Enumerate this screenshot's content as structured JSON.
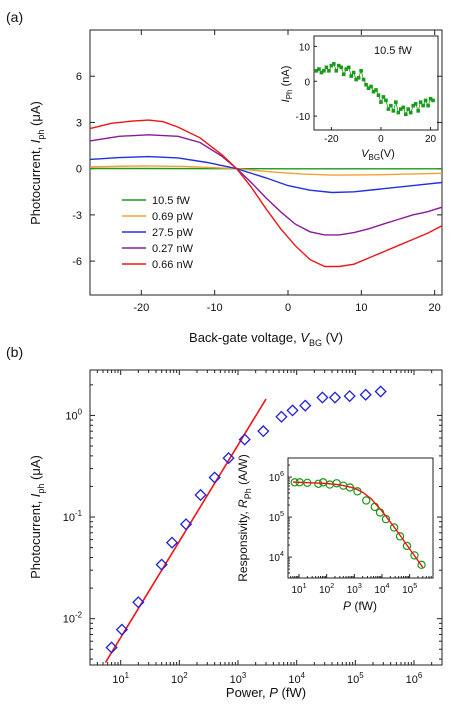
{
  "panels": [
    {
      "label": "(a)"
    },
    {
      "label": "(b)"
    }
  ],
  "chart_data": [
    {
      "panel": "(a)",
      "type": "line",
      "xlabel": "Back-gate voltage, ",
      "xlabel_var": "V",
      "xlabel_sub": "BG",
      "xlabel_unit": " (V)",
      "ylabel": "Photocurrent, ",
      "ylabel_var": "I",
      "ylabel_sub": "ph",
      "ylabel_unit": " (μA)",
      "xlim": [
        -27,
        21
      ],
      "ylim": [
        -8.2,
        9
      ],
      "xticks": [
        -20,
        -10,
        0,
        10,
        20
      ],
      "yticks": [
        -6,
        -3,
        0,
        3,
        6
      ],
      "grid": false,
      "legend_position": "lower-left",
      "series": [
        {
          "name": "10.5 fW",
          "color": "#1a9a1a",
          "x": [
            -27,
            -20,
            -7,
            0,
            6,
            21
          ],
          "y": [
            0.01,
            0.01,
            0,
            -0.01,
            -0.01,
            -0.01
          ]
        },
        {
          "name": "0.69 pW",
          "color": "#f5a030",
          "x": [
            -27,
            -20,
            -14,
            -7,
            -2,
            2,
            6,
            12,
            21
          ],
          "y": [
            0.12,
            0.18,
            0.15,
            0,
            -0.22,
            -0.35,
            -0.42,
            -0.4,
            -0.3
          ]
        },
        {
          "name": "27.5 pW",
          "color": "#2230e0",
          "x": [
            -27,
            -23,
            -19,
            -15,
            -11,
            -7,
            -3,
            0,
            3,
            6,
            9,
            12,
            15,
            18,
            21
          ],
          "y": [
            0.6,
            0.72,
            0.78,
            0.7,
            0.4,
            0,
            -0.6,
            -1.1,
            -1.4,
            -1.55,
            -1.5,
            -1.35,
            -1.2,
            -1.05,
            -0.9
          ]
        },
        {
          "name": "0.27 nW",
          "color": "#8a1a9a",
          "x": [
            -27,
            -23,
            -19,
            -15,
            -12,
            -9,
            -7,
            -5,
            -3,
            -1,
            1,
            3,
            5,
            7,
            9,
            11,
            13,
            15,
            17,
            19,
            21
          ],
          "y": [
            1.8,
            2.1,
            2.2,
            2.1,
            1.7,
            0.8,
            0.0,
            -0.9,
            -1.9,
            -2.8,
            -3.6,
            -4.1,
            -4.3,
            -4.3,
            -4.15,
            -3.9,
            -3.6,
            -3.3,
            -3.0,
            -2.8,
            -2.5
          ]
        },
        {
          "name": "0.66 nW",
          "color": "#ee1515",
          "x": [
            -27,
            -24,
            -21,
            -19,
            -17,
            -15,
            -12,
            -9,
            -7,
            -5,
            -3,
            -1,
            1,
            3,
            5,
            7,
            9,
            11,
            13,
            15,
            17,
            19,
            21
          ],
          "y": [
            2.6,
            2.95,
            3.1,
            3.15,
            3.05,
            2.7,
            2.0,
            0.9,
            0.0,
            -1.2,
            -2.6,
            -3.9,
            -5.0,
            -5.9,
            -6.35,
            -6.35,
            -6.2,
            -5.8,
            -5.4,
            -5.0,
            -4.6,
            -4.2,
            -3.7
          ]
        }
      ],
      "inset": {
        "type": "scatter",
        "annotation": "10.5 fW",
        "xlabel_var": "V",
        "xlabel_sub": "BG",
        "xlabel_unit": "(V)",
        "ylabel_var": "I",
        "ylabel_sub": "Ph",
        "ylabel_unit": " (nA)",
        "xlim": [
          -27,
          23
        ],
        "ylim": [
          -14,
          13
        ],
        "xticks": [
          -20,
          0,
          20
        ],
        "yticks": [
          -10,
          0,
          10
        ],
        "color": "#1a9a1a",
        "x": [
          -26,
          -25,
          -24,
          -23,
          -22,
          -21,
          -20,
          -19,
          -18,
          -17,
          -16,
          -15,
          -14,
          -13,
          -12,
          -11,
          -10,
          -9,
          -8,
          -7,
          -6,
          -5,
          -4,
          -3,
          -2,
          -1,
          0,
          1,
          2,
          3,
          4,
          5,
          6,
          7,
          8,
          9,
          10,
          11,
          12,
          13,
          14,
          15,
          16,
          17,
          18,
          19,
          20,
          21
        ],
        "y": [
          3,
          3.5,
          2.5,
          3,
          4,
          3,
          4.5,
          5,
          3,
          4.5,
          4,
          2,
          3.5,
          4,
          1.5,
          2.5,
          0.5,
          1,
          3,
          0.5,
          -1,
          -2,
          -1.5,
          -3,
          -2.5,
          -4,
          -6,
          -4.5,
          -5.5,
          -8,
          -7,
          -8.5,
          -6,
          -9,
          -8,
          -7.5,
          -9.5,
          -8,
          -9,
          -7,
          -6.5,
          -8.5,
          -6,
          -7,
          -5.5,
          -7,
          -5,
          -5.5
        ]
      }
    },
    {
      "panel": "(b)",
      "type": "scatter",
      "xscale": "log",
      "yscale": "log",
      "xlabel": "Power, ",
      "xlabel_var": "P",
      "xlabel_unit": " (fW)",
      "ylabel": "Photocurrent, ",
      "ylabel_var": "I",
      "ylabel_sub": "ph",
      "ylabel_unit": " (μA)",
      "xlim": [
        3,
        3000000
      ],
      "ylim": [
        0.0035,
        2.8
      ],
      "xtick_labels": [
        "10^1",
        "10^2",
        "10^3",
        "10^4",
        "10^5",
        "10^6"
      ],
      "ytick_labels": [
        "10^-2",
        "10^-1",
        "10^0"
      ],
      "grid": false,
      "series": [
        {
          "name": "",
          "marker": "diamond",
          "color": "#2020d8",
          "x": [
            7,
            10.5,
            20,
            50,
            75,
            130,
            230,
            400,
            690,
            1300,
            2700,
            5500,
            8500,
            14000,
            27500,
            45000,
            80000,
            150000,
            270000
          ],
          "y": [
            0.0052,
            0.0078,
            0.0145,
            0.034,
            0.056,
            0.085,
            0.165,
            0.245,
            0.38,
            0.58,
            0.7,
            0.97,
            1.12,
            1.25,
            1.5,
            1.5,
            1.55,
            1.6,
            1.72
          ]
        },
        {
          "name": "",
          "type": "line",
          "color": "#ee1515",
          "x": [
            5.5,
            3000
          ],
          "y": [
            0.0037,
            1.45
          ]
        }
      ],
      "inset": {
        "type": "scatter",
        "xscale": "log",
        "yscale": "log",
        "xlabel_var": "P",
        "xlabel_unit": " (fW)",
        "ylabel": "Responsivity, ",
        "ylabel_var": "R",
        "ylabel_sub": "Ph",
        "ylabel_unit": " (A/W)",
        "xlim": [
          4,
          700000
        ],
        "ylim": [
          3000,
          3000000
        ],
        "xtick_labels": [
          "10^1",
          "10^2",
          "10^3",
          "10^4",
          "10^5"
        ],
        "ytick_labels": [
          "10^4",
          "10^5",
          "10^6"
        ],
        "points": {
          "color": "#1a9a1a",
          "marker": "circle",
          "x": [
            7,
            10.5,
            20,
            50,
            75,
            130,
            230,
            400,
            690,
            1300,
            2700,
            5500,
            8500,
            14000,
            27500,
            45000,
            80000,
            150000,
            270000
          ],
          "y": [
            740000,
            740000,
            720000,
            680000,
            740000,
            650000,
            700000,
            610000,
            550000,
            440000,
            260000,
            180000,
            130000,
            89000,
            55000,
            33000,
            19000,
            11000,
            6400
          ]
        },
        "fit": {
          "color": "#ee1515",
          "x": [
            6,
            10,
            30,
            100,
            300,
            1000,
            2000,
            4000,
            10000,
            30000,
            100000,
            300000
          ],
          "y": [
            750000,
            740000,
            720000,
            690000,
            640000,
            530000,
            420000,
            290000,
            140000,
            52000,
            16000,
            5500
          ]
        }
      }
    }
  ]
}
